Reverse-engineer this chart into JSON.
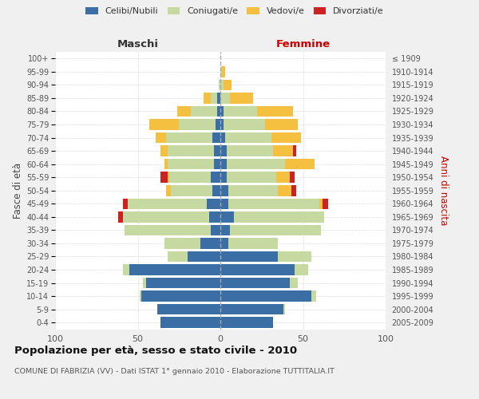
{
  "age_groups": [
    "0-4",
    "5-9",
    "10-14",
    "15-19",
    "20-24",
    "25-29",
    "30-34",
    "35-39",
    "40-44",
    "45-49",
    "50-54",
    "55-59",
    "60-64",
    "65-69",
    "70-74",
    "75-79",
    "80-84",
    "85-89",
    "90-94",
    "95-99",
    "100+"
  ],
  "birth_years": [
    "2005-2009",
    "2000-2004",
    "1995-1999",
    "1990-1994",
    "1985-1989",
    "1980-1984",
    "1975-1979",
    "1970-1974",
    "1965-1969",
    "1960-1964",
    "1955-1959",
    "1950-1954",
    "1945-1949",
    "1940-1944",
    "1935-1939",
    "1930-1934",
    "1925-1929",
    "1920-1924",
    "1915-1919",
    "1910-1914",
    "≤ 1909"
  ],
  "males": {
    "celibi": [
      36,
      38,
      48,
      45,
      55,
      20,
      12,
      6,
      7,
      8,
      5,
      6,
      4,
      4,
      5,
      3,
      2,
      2,
      0,
      0,
      0
    ],
    "coniugati": [
      0,
      0,
      1,
      2,
      4,
      12,
      22,
      52,
      52,
      48,
      25,
      25,
      28,
      28,
      28,
      22,
      16,
      4,
      1,
      0,
      0
    ],
    "vedovi": [
      0,
      0,
      0,
      0,
      0,
      0,
      0,
      0,
      0,
      0,
      3,
      1,
      2,
      4,
      6,
      18,
      8,
      4,
      0,
      0,
      0
    ],
    "divorziati": [
      0,
      0,
      0,
      0,
      0,
      0,
      0,
      0,
      3,
      3,
      0,
      4,
      0,
      0,
      0,
      0,
      0,
      0,
      0,
      0,
      0
    ]
  },
  "females": {
    "nubili": [
      32,
      38,
      55,
      42,
      45,
      35,
      5,
      6,
      8,
      5,
      5,
      4,
      4,
      4,
      3,
      2,
      2,
      0,
      0,
      0,
      0
    ],
    "coniugate": [
      0,
      1,
      3,
      5,
      8,
      20,
      30,
      55,
      55,
      55,
      30,
      30,
      35,
      28,
      28,
      25,
      20,
      6,
      2,
      1,
      0
    ],
    "vedove": [
      0,
      0,
      0,
      0,
      0,
      0,
      0,
      0,
      0,
      2,
      8,
      8,
      18,
      12,
      18,
      20,
      22,
      14,
      5,
      2,
      0
    ],
    "divorziate": [
      0,
      0,
      0,
      0,
      0,
      0,
      0,
      0,
      0,
      3,
      3,
      3,
      0,
      2,
      0,
      0,
      0,
      0,
      0,
      0,
      0
    ]
  },
  "colors": {
    "celibi": "#3a6ea5",
    "coniugati": "#c5d9a0",
    "vedovi": "#f5c040",
    "divorziati": "#cc2222"
  },
  "title": "Popolazione per età, sesso e stato civile - 2010",
  "subtitle": "COMUNE DI FABRIZIA (VV) - Dati ISTAT 1° gennaio 2010 - Elaborazione TUTTITALIA.IT",
  "xlabel_left": "Maschi",
  "xlabel_right": "Femmine",
  "ylabel_left": "Fasce di età",
  "ylabel_right": "Anni di nascita",
  "xlim": 100,
  "bg_color": "#f0f0f0",
  "plot_bg": "#ffffff",
  "grid_color": "#cccccc"
}
